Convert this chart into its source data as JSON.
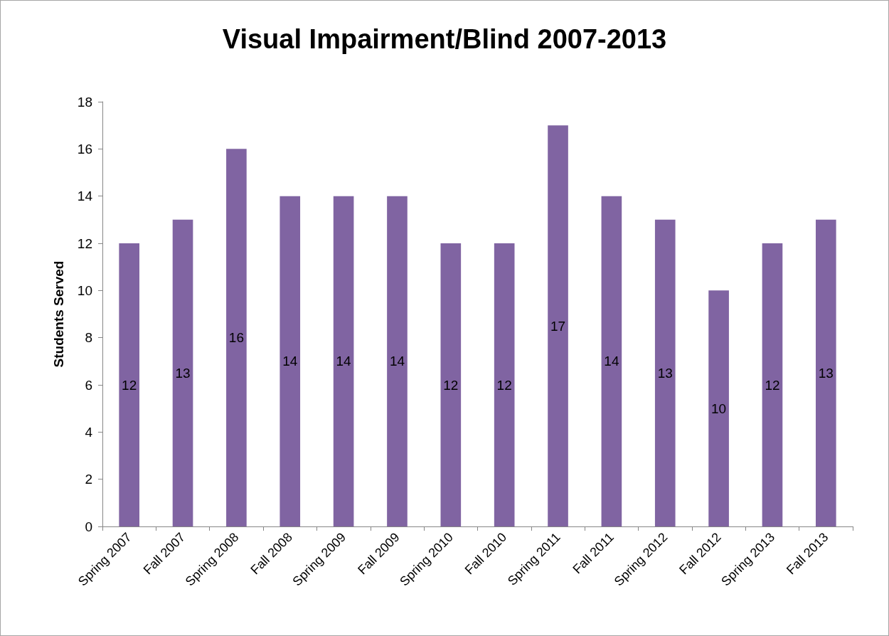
{
  "chart_data": {
    "type": "bar",
    "title": "Visual Impairment/Blind 2007-2013",
    "ylabel": "Students Served",
    "categories": [
      "Spring 2007",
      "Fall 2007",
      "Spring 2008",
      "Fall 2008",
      "Spring 2009",
      "Fall 2009",
      "Spring 2010",
      "Fall 2010",
      "Spring 2011",
      "Fall 2011",
      "Spring 2012",
      "Fall 2012",
      "Spring 2013",
      "Fall 2013"
    ],
    "values": [
      12,
      13,
      16,
      14,
      14,
      14,
      12,
      12,
      17,
      14,
      13,
      10,
      12,
      13
    ],
    "color": "#8064a2",
    "ylim": [
      0,
      18
    ],
    "yticks": [
      0,
      2,
      4,
      6,
      8,
      10,
      12,
      14,
      16,
      18
    ],
    "data_labels": true
  }
}
